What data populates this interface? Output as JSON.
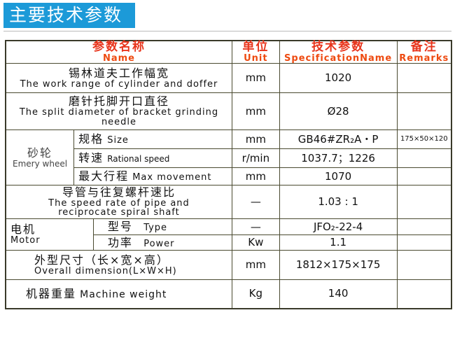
{
  "title": "主要技术参数",
  "header": {
    "name_cn": "参数名称",
    "name_en": "Name",
    "unit_cn": "单位",
    "unit_en": "Unit",
    "spec_cn": "技术参数",
    "spec_en": "SpecificationName",
    "remarks_cn": "备注",
    "remarks_en": "Remarks"
  },
  "rows": {
    "r1": {
      "cn": "锡林道夫工作幅宽",
      "en": "The work range of cylinder and doffer",
      "unit": "mm",
      "spec": "1020"
    },
    "r2": {
      "cn": "磨针托脚开口直径",
      "en": "The split diameter of bracket grinding needle",
      "unit": "mm",
      "spec": "Ø28"
    },
    "emery": {
      "cn": "砂轮",
      "en": "Emery wheel",
      "size": {
        "cn": "规格",
        "en": "Size",
        "unit": "mm",
        "spec": "GB46#ZR₂A・P",
        "remark": "175×50×120"
      },
      "speed": {
        "cn": "转速",
        "en": "Rational speed",
        "unit": "r/min",
        "spec": "1037.7；1226"
      },
      "move": {
        "cn": "最大行程",
        "en": "Max movement",
        "unit": "mm",
        "spec": "1070"
      }
    },
    "r4": {
      "cn": "导管与往复螺杆速比",
      "en": "The speed rate of pipe and reciprocate spiral shaft",
      "unit": "—",
      "spec": "1.03 : 1"
    },
    "motor": {
      "cn": "电机",
      "en": "Motor",
      "type": {
        "cn": "型号",
        "en": "Type",
        "unit": "—",
        "spec": "JFO₂-22-4"
      },
      "power": {
        "cn": "功率",
        "en": "Power",
        "unit": "Kw",
        "spec": "1.1"
      }
    },
    "r6": {
      "cn": "外型尺寸（长×宽×高）",
      "en": "Overall dimension(L×W×H)",
      "unit": "mm",
      "spec": "1812×175×175"
    },
    "r7": {
      "cn": "机器重量",
      "en": "Machine weight",
      "unit": "Kg",
      "spec": "140"
    }
  }
}
